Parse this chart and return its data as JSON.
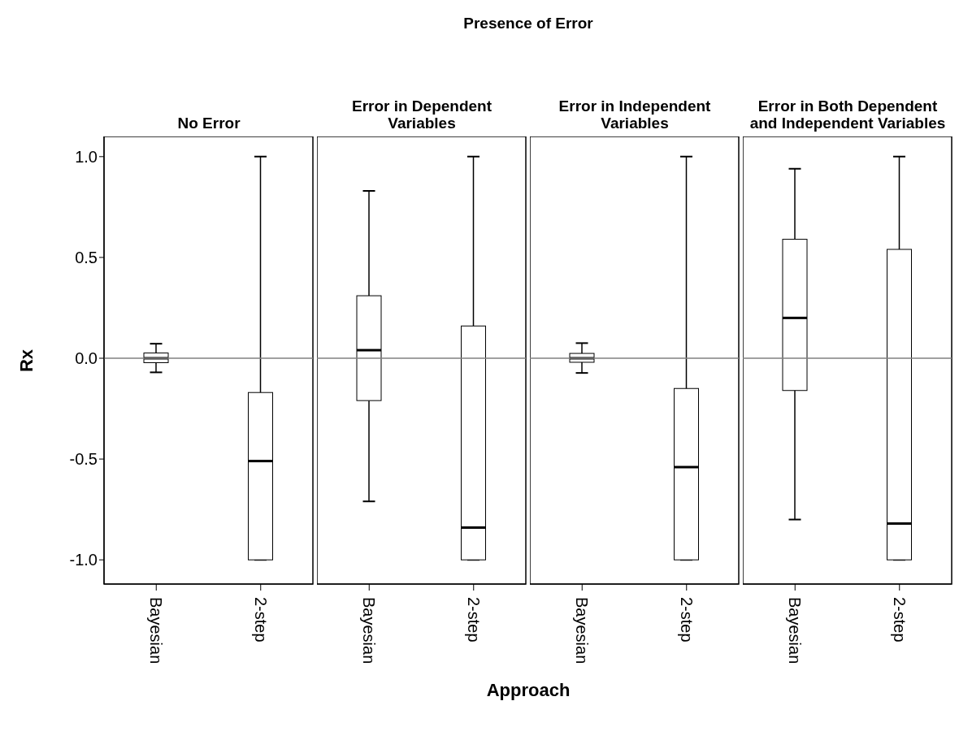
{
  "chart_data": [
    {
      "type": "box",
      "title": "No Error",
      "ylabel": "Rx",
      "categories": [
        "Bayesian",
        "2-step"
      ],
      "boxes": [
        {
          "low": -0.07,
          "q1": -0.022,
          "median": 0.0,
          "q3": 0.026,
          "high": 0.072
        },
        {
          "low": -1.0,
          "q1": -1.0,
          "median": -0.51,
          "q3": -0.17,
          "high": 1.0
        }
      ],
      "ylim": [
        -1.12,
        1.1
      ],
      "yticks": [
        {
          "value": -1,
          "label": "-1.0"
        },
        {
          "value": -0.5,
          "label": "-0.5"
        },
        {
          "value": 0,
          "label": "0.0"
        },
        {
          "value": 0.5,
          "label": "0.5"
        },
        {
          "value": 1,
          "label": "1.0"
        }
      ],
      "ref_lines": [
        {
          "axis": "y",
          "value": 0,
          "color": "#808080"
        }
      ]
    },
    {
      "type": "box",
      "title": "Error in Dependent Variables",
      "annotations": [
        "Presence of Error"
      ],
      "xlabel": "Approach",
      "categories": [
        "Bayesian",
        "2-step"
      ],
      "boxes": [
        {
          "low": -0.71,
          "q1": -0.21,
          "median": 0.04,
          "q3": 0.31,
          "high": 0.83
        },
        {
          "low": -1.0,
          "q1": -1.0,
          "median": -0.84,
          "q3": 0.16,
          "high": 1.0
        }
      ],
      "ylim": [
        -1.12,
        1.1
      ],
      "tick_labels": "x",
      "ref_lines": [
        {
          "axis": "y",
          "value": 0,
          "color": "#808080"
        }
      ]
    },
    {
      "type": "box",
      "title": "Error in Independent Variables",
      "categories": [
        "Bayesian",
        "2-step"
      ],
      "boxes": [
        {
          "low": -0.073,
          "q1": -0.02,
          "median": 0.0,
          "q3": 0.024,
          "high": 0.075
        },
        {
          "low": -1.0,
          "q1": -1.0,
          "median": -0.54,
          "q3": -0.15,
          "high": 1.0
        }
      ],
      "ylim": [
        -1.12,
        1.1
      ],
      "tick_labels": "x",
      "ref_lines": [
        {
          "axis": "y",
          "value": 0,
          "color": "#808080"
        }
      ]
    },
    {
      "type": "box",
      "title": "Error in Both Dependent and Independent Variables",
      "categories": [
        "Bayesian",
        "2-step"
      ],
      "boxes": [
        {
          "low": -0.8,
          "q1": -0.16,
          "median": 0.2,
          "q3": 0.59,
          "high": 0.94
        },
        {
          "low": -1.0,
          "q1": -1.0,
          "median": -0.82,
          "q3": 0.54,
          "high": 1.0
        }
      ],
      "ylim": [
        -1.12,
        1.1
      ],
      "tick_labels": "x",
      "ref_lines": [
        {
          "axis": "y",
          "value": 0,
          "color": "#808080"
        }
      ]
    }
  ]
}
